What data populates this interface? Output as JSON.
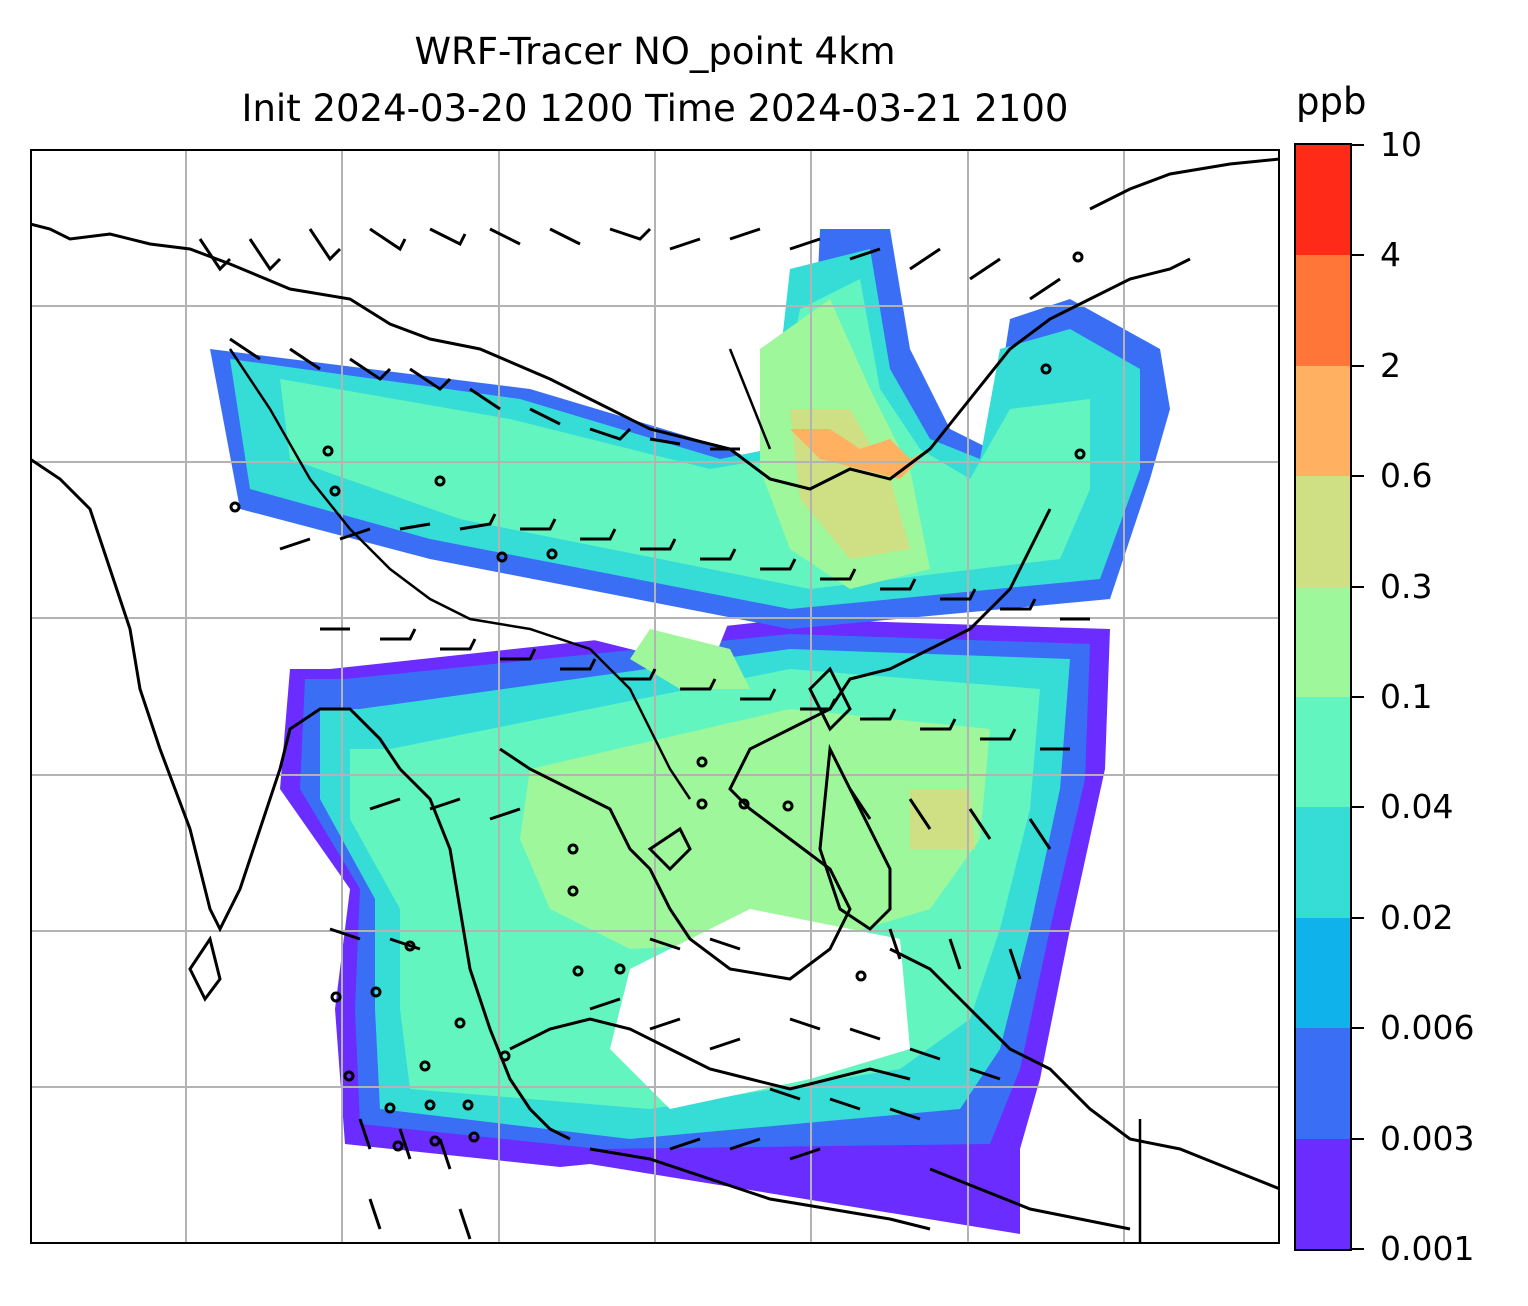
{
  "title": {
    "line1": "WRF-Tracer NO_point 4km",
    "line2": "Init 2024-03-20 1200 Time 2024-03-21 2100"
  },
  "colorbar": {
    "unit": "ppb",
    "levels": [
      "0.001",
      "0.003",
      "0.006",
      "0.02",
      "0.04",
      "0.1",
      "0.3",
      "0.6",
      "2",
      "4",
      "10"
    ],
    "colors": [
      "#6a2cff",
      "#3a6ff5",
      "#0fb2ea",
      "#35ddd6",
      "#63f5c0",
      "#9ef79a",
      "#cfe084",
      "#ffb060",
      "#ff7638",
      "#ff2a18"
    ]
  },
  "map": {
    "grid": "on",
    "features": [
      "coastlines",
      "country-borders",
      "wind-barbs",
      "tracer-concentration-fill"
    ]
  }
}
